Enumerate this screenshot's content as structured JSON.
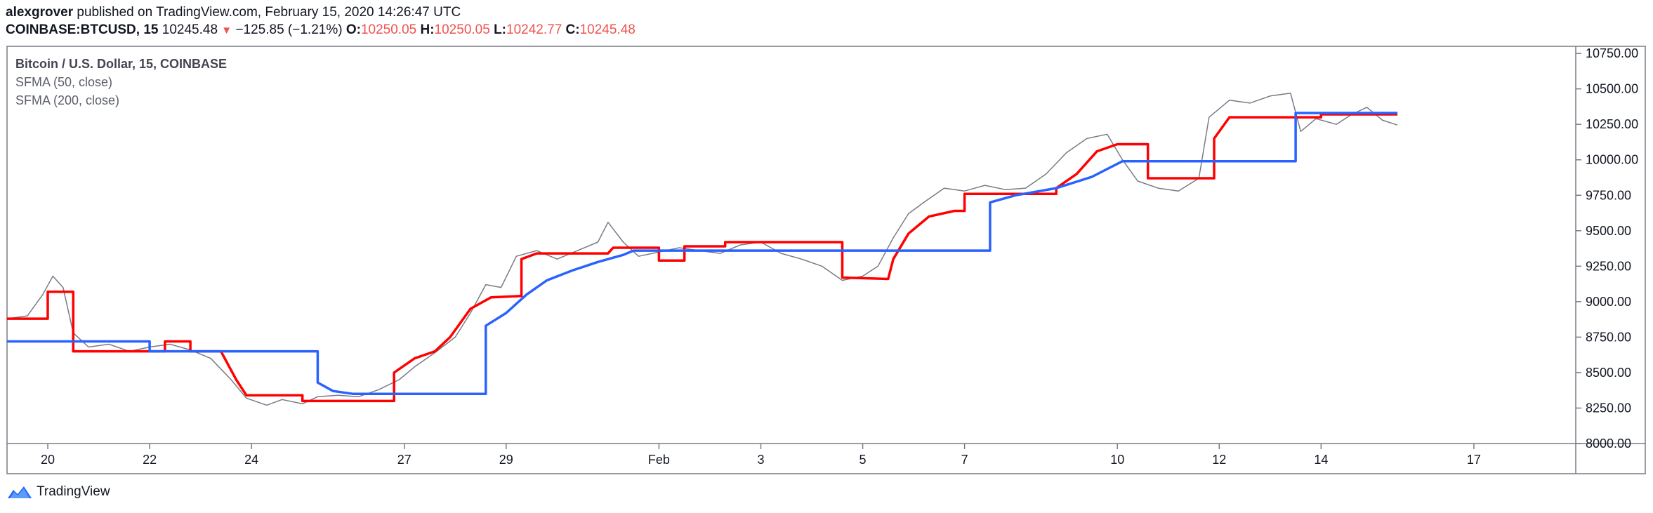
{
  "header": {
    "author": "alexgrover",
    "published_text": "published on TradingView.com, February 15, 2020 14:26:47 UTC",
    "symbol": "COINBASE:BTCUSD, 15",
    "last": "10245.48",
    "change": "−125.85 (−1.21%)",
    "o_label": "O:",
    "o": "10250.05",
    "h_label": "H:",
    "h": "10250.05",
    "l_label": "L:",
    "l": "10242.77",
    "c_label": "C:",
    "c": "10245.48"
  },
  "legend": {
    "title": "Bitcoin / U.S. Dollar, 15, COINBASE",
    "ma1": "SFMA (50, close)",
    "ma2": "SFMA (200, close)"
  },
  "footer": {
    "brand": "TradingView"
  },
  "colors": {
    "price": "#787b86",
    "ma50": "#ff0000",
    "ma200": "#2962ff",
    "border": "#787b86"
  },
  "chart_data": {
    "type": "line",
    "x_unit": "days since Jan 19 2020",
    "xlim": [
      0.2,
      31.0
    ],
    "ylim": [
      8000,
      10800
    ],
    "y_ticks": [
      8000,
      8250,
      8500,
      8750,
      9000,
      9250,
      9500,
      9750,
      10000,
      10250,
      10500,
      10750
    ],
    "y_tick_labels": [
      "8000.00",
      "8250.00",
      "8500.00",
      "8750.00",
      "9000.00",
      "9250.00",
      "9500.00",
      "9750.00",
      "10000.00",
      "10250.00",
      "10500.00",
      "10750.00"
    ],
    "x_ticks": [
      {
        "x": 1,
        "label": "20"
      },
      {
        "x": 3,
        "label": "22"
      },
      {
        "x": 5,
        "label": "24"
      },
      {
        "x": 8,
        "label": "27"
      },
      {
        "x": 10,
        "label": "29"
      },
      {
        "x": 13,
        "label": "Feb"
      },
      {
        "x": 15,
        "label": "3"
      },
      {
        "x": 17,
        "label": "5"
      },
      {
        "x": 19,
        "label": "7"
      },
      {
        "x": 22,
        "label": "10"
      },
      {
        "x": 24,
        "label": "12"
      },
      {
        "x": 26,
        "label": "14"
      },
      {
        "x": 29,
        "label": "17"
      }
    ],
    "series": [
      {
        "name": "BTCUSD",
        "values": [
          [
            0.2,
            8880
          ],
          [
            0.6,
            8900
          ],
          [
            0.9,
            9050
          ],
          [
            1.1,
            9180
          ],
          [
            1.3,
            9100
          ],
          [
            1.5,
            8780
          ],
          [
            1.8,
            8680
          ],
          [
            2.2,
            8700
          ],
          [
            2.6,
            8650
          ],
          [
            3.0,
            8680
          ],
          [
            3.4,
            8700
          ],
          [
            3.8,
            8660
          ],
          [
            4.2,
            8600
          ],
          [
            4.6,
            8450
          ],
          [
            4.9,
            8320
          ],
          [
            5.3,
            8270
          ],
          [
            5.6,
            8310
          ],
          [
            6.0,
            8280
          ],
          [
            6.3,
            8330
          ],
          [
            6.7,
            8340
          ],
          [
            7.1,
            8330
          ],
          [
            7.5,
            8380
          ],
          [
            7.9,
            8450
          ],
          [
            8.2,
            8540
          ],
          [
            8.6,
            8640
          ],
          [
            9.0,
            8750
          ],
          [
            9.3,
            8920
          ],
          [
            9.6,
            9120
          ],
          [
            9.9,
            9100
          ],
          [
            10.2,
            9320
          ],
          [
            10.6,
            9360
          ],
          [
            11.0,
            9300
          ],
          [
            11.4,
            9360
          ],
          [
            11.8,
            9420
          ],
          [
            12.0,
            9560
          ],
          [
            12.3,
            9420
          ],
          [
            12.6,
            9320
          ],
          [
            13.0,
            9350
          ],
          [
            13.4,
            9380
          ],
          [
            13.8,
            9360
          ],
          [
            14.2,
            9340
          ],
          [
            14.6,
            9400
          ],
          [
            15.0,
            9420
          ],
          [
            15.4,
            9340
          ],
          [
            15.8,
            9300
          ],
          [
            16.2,
            9250
          ],
          [
            16.6,
            9150
          ],
          [
            17.0,
            9180
          ],
          [
            17.3,
            9250
          ],
          [
            17.6,
            9450
          ],
          [
            17.9,
            9620
          ],
          [
            18.2,
            9700
          ],
          [
            18.6,
            9800
          ],
          [
            19.0,
            9780
          ],
          [
            19.4,
            9820
          ],
          [
            19.8,
            9790
          ],
          [
            20.2,
            9800
          ],
          [
            20.6,
            9900
          ],
          [
            21.0,
            10050
          ],
          [
            21.4,
            10150
          ],
          [
            21.8,
            10180
          ],
          [
            22.1,
            10000
          ],
          [
            22.4,
            9850
          ],
          [
            22.8,
            9800
          ],
          [
            23.2,
            9780
          ],
          [
            23.6,
            9870
          ],
          [
            23.8,
            10300
          ],
          [
            24.2,
            10420
          ],
          [
            24.6,
            10400
          ],
          [
            25.0,
            10450
          ],
          [
            25.4,
            10470
          ],
          [
            25.6,
            10200
          ],
          [
            25.9,
            10290
          ],
          [
            26.3,
            10250
          ],
          [
            26.6,
            10320
          ],
          [
            26.9,
            10370
          ],
          [
            27.2,
            10280
          ],
          [
            27.5,
            10245
          ]
        ]
      },
      {
        "name": "SFMA (50, close)",
        "values": [
          [
            0.2,
            8880
          ],
          [
            1.0,
            8880
          ],
          [
            1.0,
            9070
          ],
          [
            1.5,
            9070
          ],
          [
            1.5,
            8650
          ],
          [
            3.3,
            8650
          ],
          [
            3.3,
            8720
          ],
          [
            3.8,
            8720
          ],
          [
            3.8,
            8650
          ],
          [
            4.4,
            8650
          ],
          [
            4.7,
            8450
          ],
          [
            4.9,
            8340
          ],
          [
            6.0,
            8340
          ],
          [
            6.0,
            8300
          ],
          [
            7.8,
            8300
          ],
          [
            7.8,
            8500
          ],
          [
            8.2,
            8600
          ],
          [
            8.6,
            8650
          ],
          [
            8.9,
            8750
          ],
          [
            9.3,
            8950
          ],
          [
            9.7,
            9030
          ],
          [
            10.3,
            9040
          ],
          [
            10.3,
            9300
          ],
          [
            10.6,
            9340
          ],
          [
            12.0,
            9340
          ],
          [
            12.1,
            9380
          ],
          [
            13.0,
            9380
          ],
          [
            13.0,
            9290
          ],
          [
            13.5,
            9290
          ],
          [
            13.5,
            9390
          ],
          [
            14.3,
            9390
          ],
          [
            14.3,
            9420
          ],
          [
            16.6,
            9420
          ],
          [
            16.6,
            9170
          ],
          [
            17.5,
            9160
          ],
          [
            17.6,
            9300
          ],
          [
            17.9,
            9480
          ],
          [
            18.3,
            9600
          ],
          [
            18.8,
            9640
          ],
          [
            19.0,
            9640
          ],
          [
            19.0,
            9760
          ],
          [
            20.8,
            9760
          ],
          [
            20.8,
            9800
          ],
          [
            21.2,
            9900
          ],
          [
            21.6,
            10060
          ],
          [
            22.0,
            10110
          ],
          [
            22.6,
            10110
          ],
          [
            22.6,
            9870
          ],
          [
            23.9,
            9870
          ],
          [
            23.9,
            10150
          ],
          [
            24.2,
            10300
          ],
          [
            26.0,
            10300
          ],
          [
            26.0,
            10320
          ],
          [
            27.5,
            10320
          ]
        ]
      },
      {
        "name": "SFMA (200, close)",
        "values": [
          [
            0.2,
            8720
          ],
          [
            3.0,
            8720
          ],
          [
            3.0,
            8650
          ],
          [
            6.3,
            8650
          ],
          [
            6.3,
            8430
          ],
          [
            6.6,
            8370
          ],
          [
            7.0,
            8350
          ],
          [
            9.6,
            8350
          ],
          [
            9.6,
            8830
          ],
          [
            10.0,
            8920
          ],
          [
            10.4,
            9050
          ],
          [
            10.8,
            9150
          ],
          [
            11.3,
            9220
          ],
          [
            11.8,
            9280
          ],
          [
            12.3,
            9330
          ],
          [
            12.5,
            9360
          ],
          [
            19.5,
            9360
          ],
          [
            19.5,
            9700
          ],
          [
            20.0,
            9750
          ],
          [
            20.8,
            9800
          ],
          [
            21.5,
            9880
          ],
          [
            22.1,
            9990
          ],
          [
            25.5,
            9990
          ],
          [
            25.5,
            10330
          ],
          [
            27.5,
            10330
          ]
        ]
      }
    ]
  }
}
